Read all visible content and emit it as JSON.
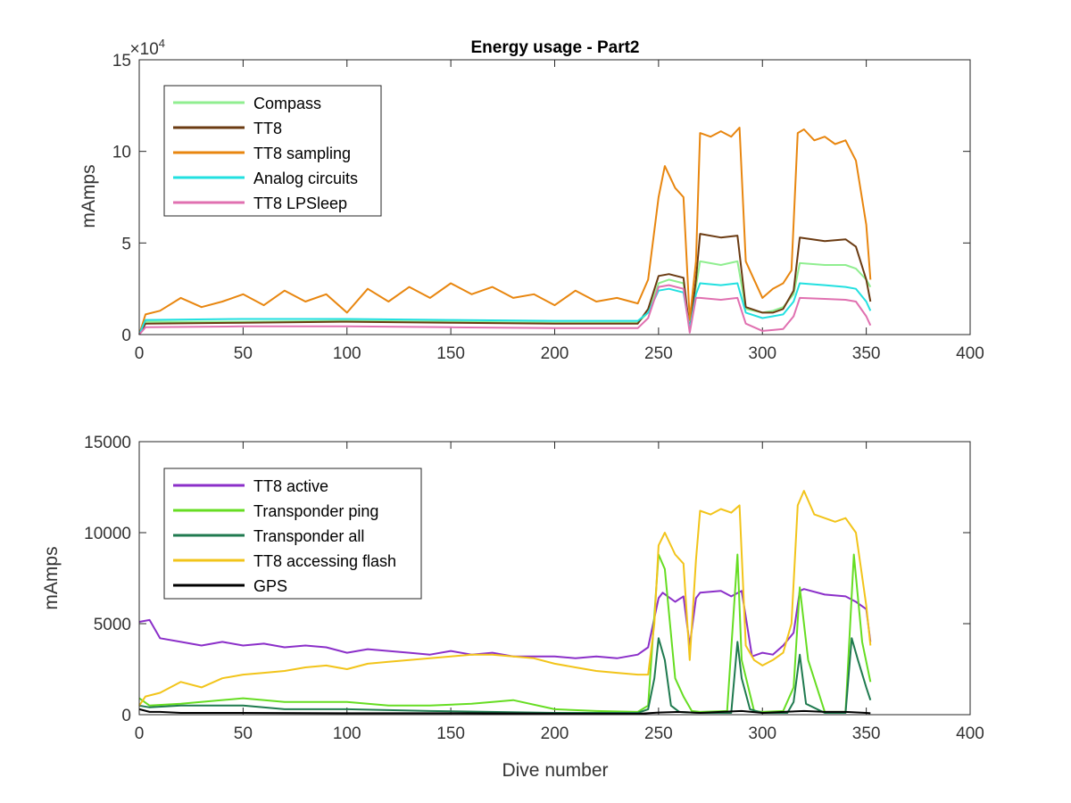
{
  "figure": {
    "title": "Energy usage - Part2",
    "xlabel": "Dive number"
  },
  "chart_data": [
    {
      "type": "line",
      "title": "Energy usage - Part2",
      "xlabel": "",
      "ylabel": "mAmps",
      "exponent_label": "×10",
      "exponent_power": "4",
      "xlim": [
        0,
        400
      ],
      "ylim": [
        0,
        150000
      ],
      "xticks": [
        0,
        50,
        100,
        150,
        200,
        250,
        300,
        350,
        400
      ],
      "xtick_labels": [
        "0",
        "50",
        "100",
        "150",
        "200",
        "250",
        "300",
        "350",
        "400"
      ],
      "yticks": [
        0,
        50000,
        100000,
        150000
      ],
      "ytick_labels": [
        "0",
        "5",
        "10",
        "15"
      ],
      "grid": false,
      "legend_position": "top-left",
      "series": [
        {
          "name": "Compass",
          "color": "#90ee90",
          "x": [
            0,
            3,
            50,
            100,
            150,
            200,
            240,
            245,
            250,
            255,
            262,
            265,
            268,
            270,
            280,
            288,
            292,
            300,
            305,
            310,
            315,
            318,
            330,
            340,
            345,
            350,
            352
          ],
          "y": [
            0,
            7000,
            7000,
            7500,
            7000,
            6500,
            6500,
            12000,
            28000,
            30000,
            28000,
            3000,
            26000,
            40000,
            38000,
            40000,
            14000,
            12000,
            13000,
            15000,
            22000,
            39000,
            38000,
            38000,
            36000,
            30000,
            26000
          ]
        },
        {
          "name": "TT8",
          "color": "#6b3b12",
          "x": [
            0,
            3,
            50,
            100,
            150,
            200,
            240,
            245,
            250,
            255,
            262,
            265,
            268,
            270,
            280,
            288,
            292,
            300,
            305,
            310,
            315,
            318,
            330,
            340,
            345,
            350,
            352
          ],
          "y": [
            0,
            6000,
            6500,
            7000,
            6500,
            6000,
            6000,
            14000,
            32000,
            33000,
            31000,
            2000,
            30000,
            55000,
            53000,
            54000,
            15000,
            12000,
            12000,
            14000,
            24000,
            53000,
            51000,
            52000,
            48000,
            30000,
            18000
          ]
        },
        {
          "name": "TT8 sampling",
          "color": "#e8860f",
          "x": [
            0,
            3,
            10,
            20,
            30,
            40,
            50,
            60,
            70,
            80,
            90,
            100,
            110,
            120,
            130,
            140,
            150,
            160,
            170,
            180,
            190,
            200,
            210,
            220,
            230,
            240,
            245,
            250,
            253,
            258,
            262,
            265,
            268,
            270,
            275,
            280,
            285,
            289,
            292,
            296,
            300,
            305,
            310,
            314,
            317,
            320,
            325,
            330,
            335,
            340,
            345,
            350,
            352
          ],
          "y": [
            0,
            11000,
            13000,
            20000,
            15000,
            18000,
            22000,
            16000,
            24000,
            18000,
            22000,
            12000,
            25000,
            18000,
            26000,
            20000,
            28000,
            22000,
            26000,
            20000,
            22000,
            16000,
            24000,
            18000,
            20000,
            17000,
            30000,
            75000,
            92000,
            80000,
            75000,
            8000,
            40000,
            110000,
            108000,
            111000,
            108000,
            113000,
            40000,
            30000,
            20000,
            25000,
            28000,
            35000,
            110000,
            112000,
            106000,
            108000,
            104000,
            106000,
            95000,
            60000,
            30000
          ]
        },
        {
          "name": "Analog circuits",
          "color": "#22e0e0",
          "x": [
            0,
            3,
            50,
            100,
            150,
            200,
            240,
            245,
            250,
            255,
            262,
            265,
            268,
            270,
            280,
            288,
            292,
            300,
            305,
            310,
            315,
            318,
            330,
            340,
            345,
            350,
            352
          ],
          "y": [
            0,
            8000,
            8500,
            8500,
            8000,
            7500,
            7500,
            12000,
            24000,
            25000,
            23000,
            3000,
            22000,
            28000,
            27000,
            28000,
            12000,
            9000,
            10000,
            11000,
            18000,
            28000,
            27000,
            26000,
            25000,
            18000,
            13000
          ]
        },
        {
          "name": "TT8 LPSleep",
          "color": "#e070b0",
          "x": [
            0,
            3,
            50,
            100,
            150,
            200,
            240,
            245,
            250,
            255,
            262,
            265,
            268,
            270,
            280,
            288,
            292,
            300,
            305,
            310,
            315,
            318,
            330,
            340,
            345,
            350,
            352
          ],
          "y": [
            0,
            4000,
            4500,
            4500,
            4000,
            3500,
            3500,
            9000,
            26000,
            27000,
            25000,
            1000,
            20000,
            20000,
            19000,
            20000,
            6000,
            2000,
            2500,
            3000,
            10000,
            20000,
            19500,
            19000,
            18000,
            10000,
            5000
          ]
        }
      ]
    },
    {
      "type": "line",
      "title": "",
      "xlabel": "Dive number",
      "ylabel": "mAmps",
      "xlim": [
        0,
        400
      ],
      "ylim": [
        0,
        15000
      ],
      "xticks": [
        0,
        50,
        100,
        150,
        200,
        250,
        300,
        350,
        400
      ],
      "xtick_labels": [
        "0",
        "50",
        "100",
        "150",
        "200",
        "250",
        "300",
        "350",
        "400"
      ],
      "yticks": [
        0,
        5000,
        10000,
        15000
      ],
      "ytick_labels": [
        "0",
        "5000",
        "10000",
        "15000"
      ],
      "grid": false,
      "legend_position": "top-left",
      "series": [
        {
          "name": "TT8 active",
          "color": "#8b2fc9",
          "x": [
            0,
            5,
            10,
            20,
            30,
            40,
            50,
            60,
            70,
            80,
            90,
            100,
            110,
            120,
            130,
            140,
            150,
            160,
            170,
            180,
            190,
            200,
            210,
            220,
            230,
            240,
            245,
            250,
            252,
            258,
            262,
            265,
            268,
            270,
            280,
            285,
            290,
            295,
            300,
            305,
            310,
            315,
            318,
            320,
            330,
            340,
            345,
            350,
            352
          ],
          "y": [
            5100,
            5200,
            4200,
            4000,
            3800,
            4000,
            3800,
            3900,
            3700,
            3800,
            3700,
            3400,
            3600,
            3500,
            3400,
            3300,
            3500,
            3300,
            3400,
            3200,
            3200,
            3200,
            3100,
            3200,
            3100,
            3300,
            3700,
            6400,
            6700,
            6200,
            6500,
            3800,
            6400,
            6700,
            6800,
            6500,
            6800,
            3200,
            3400,
            3300,
            3800,
            4500,
            6800,
            6900,
            6600,
            6500,
            6200,
            5800,
            4000
          ]
        },
        {
          "name": "Transponder ping",
          "color": "#66dd22",
          "x": [
            0,
            5,
            20,
            50,
            70,
            100,
            120,
            140,
            160,
            180,
            200,
            220,
            240,
            245,
            250,
            253,
            258,
            262,
            266,
            270,
            283,
            288,
            290,
            296,
            300,
            310,
            315,
            318,
            322,
            330,
            340,
            344,
            348,
            352
          ],
          "y": [
            900,
            500,
            600,
            900,
            700,
            700,
            500,
            500,
            600,
            800,
            300,
            200,
            150,
            500,
            8800,
            8000,
            2000,
            1000,
            200,
            150,
            200,
            8800,
            3000,
            200,
            150,
            200,
            1500,
            7000,
            3000,
            150,
            150,
            8800,
            4000,
            1800
          ]
        },
        {
          "name": "Transponder all",
          "color": "#1f7a4f",
          "x": [
            0,
            5,
            20,
            50,
            70,
            100,
            140,
            200,
            240,
            245,
            248,
            250,
            253,
            256,
            260,
            270,
            285,
            288,
            290,
            294,
            300,
            312,
            315,
            318,
            321,
            330,
            340,
            343,
            346,
            350,
            352
          ],
          "y": [
            500,
            400,
            500,
            500,
            300,
            300,
            200,
            100,
            100,
            300,
            2000,
            4200,
            3000,
            500,
            150,
            100,
            100,
            4000,
            2000,
            300,
            100,
            100,
            700,
            3300,
            600,
            100,
            100,
            4200,
            3000,
            1500,
            800
          ]
        },
        {
          "name": "TT8 accessing flash",
          "color": "#f2c41a",
          "x": [
            0,
            3,
            10,
            20,
            30,
            40,
            50,
            60,
            70,
            80,
            90,
            100,
            110,
            120,
            130,
            140,
            150,
            160,
            170,
            180,
            190,
            200,
            210,
            220,
            230,
            240,
            245,
            248,
            250,
            253,
            258,
            262,
            265,
            268,
            270,
            275,
            280,
            285,
            289,
            292,
            296,
            300,
            305,
            310,
            314,
            317,
            320,
            325,
            330,
            335,
            340,
            345,
            350,
            352
          ],
          "y": [
            500,
            1000,
            1200,
            1800,
            1500,
            2000,
            2200,
            2300,
            2400,
            2600,
            2700,
            2500,
            2800,
            2900,
            3000,
            3100,
            3200,
            3300,
            3300,
            3200,
            3100,
            2800,
            2600,
            2400,
            2300,
            2200,
            2200,
            5000,
            9300,
            10000,
            8800,
            8300,
            3000,
            8500,
            11200,
            11000,
            11300,
            11100,
            11500,
            3800,
            3000,
            2700,
            3000,
            3400,
            5000,
            11500,
            12300,
            11000,
            10800,
            10600,
            10800,
            10000,
            6000,
            3800
          ]
        },
        {
          "name": "GPS",
          "color": "#000000",
          "x": [
            0,
            5,
            10,
            20,
            50,
            100,
            150,
            200,
            240,
            250,
            260,
            270,
            280,
            290,
            300,
            310,
            320,
            330,
            340,
            350,
            352
          ],
          "y": [
            300,
            150,
            150,
            100,
            100,
            80,
            80,
            60,
            50,
            120,
            150,
            100,
            150,
            200,
            100,
            150,
            200,
            150,
            150,
            100,
            80
          ]
        }
      ]
    }
  ]
}
